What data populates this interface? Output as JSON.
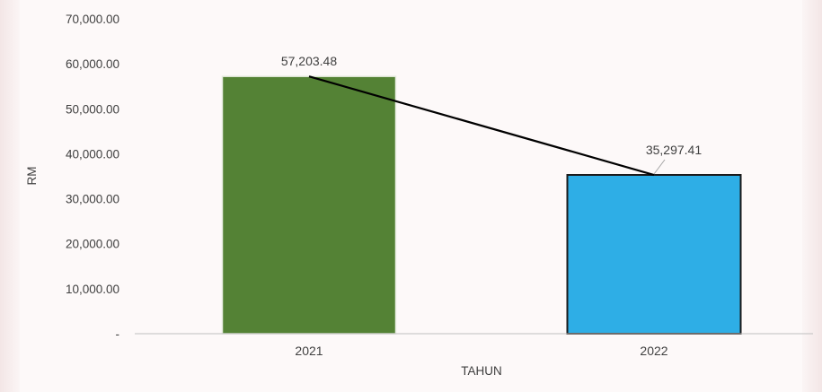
{
  "chart_data": {
    "type": "bar",
    "categories": [
      "2021",
      "2022"
    ],
    "values": [
      57203.48,
      35297.41
    ],
    "data_labels": [
      "57,203.48",
      "35,297.41"
    ],
    "title": "",
    "xlabel": "TAHUN",
    "ylabel": "RM",
    "ylim": [
      0,
      70000
    ],
    "yticks": [
      0,
      10000,
      20000,
      30000,
      40000,
      50000,
      60000,
      70000
    ],
    "ytick_labels": [
      "-",
      "10,000.00",
      "20,000.00",
      "30,000.00",
      "40,000.00",
      "50,000.00",
      "60,000.00",
      "70,000.00"
    ],
    "bar_colors": [
      "#548235",
      "#2eaee6"
    ],
    "trend_line": true,
    "trend_line_color": "#000000",
    "grid": false,
    "legend": "none"
  }
}
